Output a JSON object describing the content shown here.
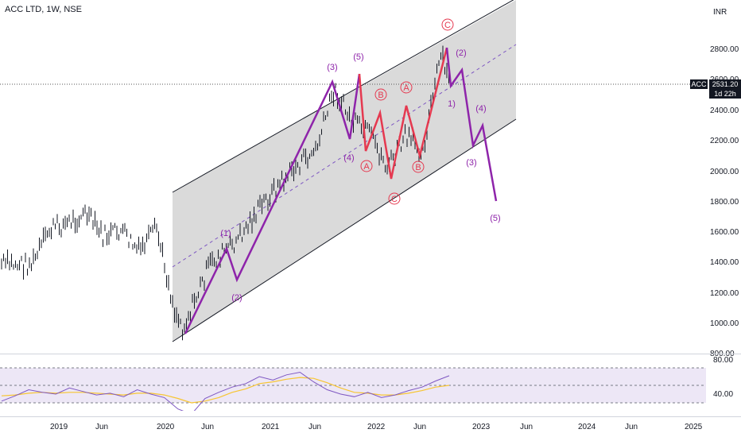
{
  "title": "ACC LTD, 1W, NSE",
  "currency": "INR",
  "badges": {
    "symbol": "ACC",
    "price": "2531.20",
    "countdown": "1d 22h"
  },
  "colors": {
    "wave_purple": "#8e24aa",
    "wave_red": "#e53950",
    "channel_fill": "#d3d3d3",
    "rsi_line": "#7e57c2",
    "rsi_ma": "#f7c531",
    "rsi_band": "#ede7f6"
  },
  "price_axis_labels": [
    "2800.00",
    "2600.00",
    "2400.00",
    "2200.00",
    "2000.00",
    "1800.00",
    "1600.00",
    "1400.00",
    "1200.00",
    "1000.00",
    "800.00"
  ],
  "rsi_axis_labels": [
    "80.00",
    "40.00"
  ],
  "time_axis_labels": [
    "2019",
    "Jun",
    "2020",
    "Jun",
    "2021",
    "Jun",
    "2022",
    "Jun",
    "2023",
    "Jun",
    "2024",
    "Jun",
    "2025"
  ],
  "chart_data": {
    "type": "line",
    "symbol": "ACC LTD",
    "interval": "1W",
    "exchange": "NSE",
    "last_price": 2531.2,
    "y_axis": {
      "unit": "INR",
      "ylim": [
        800,
        2900
      ]
    },
    "price_path": [
      {
        "date": "2018-11",
        "value": 1350
      },
      {
        "date": "2019-01",
        "value": 1580
      },
      {
        "date": "2019-03",
        "value": 1620
      },
      {
        "date": "2019-05",
        "value": 1680
      },
      {
        "date": "2019-07",
        "value": 1530
      },
      {
        "date": "2019-09",
        "value": 1570
      },
      {
        "date": "2019-11",
        "value": 1430
      },
      {
        "date": "2020-01",
        "value": 1580
      },
      {
        "date": "2020-03",
        "value": 1050
      },
      {
        "date": "2020-04",
        "value": 930
      },
      {
        "date": "2020-07",
        "value": 1350
      },
      {
        "date": "2020-10",
        "value": 1500
      },
      {
        "date": "2021-01",
        "value": 1750
      },
      {
        "date": "2021-04",
        "value": 1950
      },
      {
        "date": "2021-07",
        "value": 2100
      },
      {
        "date": "2021-09",
        "value": 2500
      },
      {
        "date": "2021-11",
        "value": 2280
      },
      {
        "date": "2022-01",
        "value": 2200
      },
      {
        "date": "2022-03",
        "value": 1980
      },
      {
        "date": "2022-05",
        "value": 2180
      },
      {
        "date": "2022-07",
        "value": 2100
      },
      {
        "date": "2022-09",
        "value": 2720
      },
      {
        "date": "2022-10",
        "value": 2531
      }
    ],
    "wave_labels": [
      "(1)",
      "(2)",
      "(3)",
      "(4)",
      "(5)",
      "A",
      "B",
      "C",
      "A",
      "B",
      "C",
      "1)",
      "(2)",
      "(3)",
      "(4)",
      "(5)"
    ],
    "rsi": {
      "ylim": [
        20,
        85
      ],
      "levels": [
        80,
        40
      ],
      "values": [
        42,
        48,
        55,
        52,
        50,
        57,
        53,
        49,
        51,
        47,
        55,
        50,
        46,
        33,
        27,
        45,
        52,
        58,
        62,
        70,
        66,
        72,
        75,
        64,
        55,
        50,
        47,
        52,
        46,
        49,
        54,
        58,
        65,
        71
      ],
      "ma_values": [
        48,
        49,
        51,
        52,
        51,
        52,
        52,
        51,
        50,
        49,
        51,
        51,
        49,
        45,
        40,
        42,
        46,
        52,
        56,
        62,
        64,
        67,
        69,
        68,
        63,
        57,
        52,
        51,
        49,
        49,
        51,
        54,
        58,
        60
      ]
    }
  }
}
